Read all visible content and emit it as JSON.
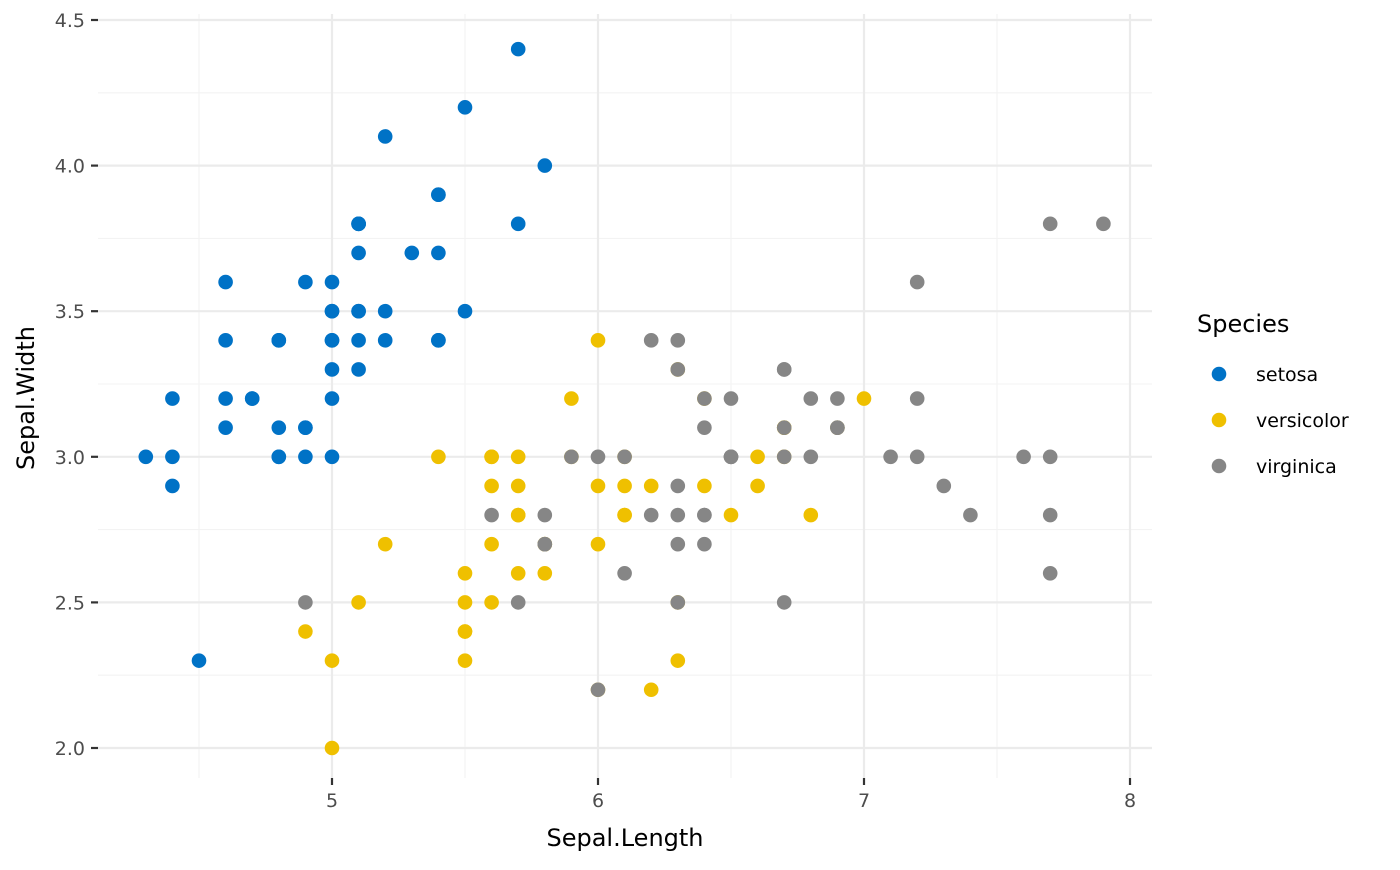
{
  "chart_data": {
    "type": "scatter",
    "title": "",
    "xlabel": "Sepal.Length",
    "ylabel": "Sepal.Width",
    "xlim": [
      4.2,
      8.1
    ],
    "ylim": [
      1.9,
      4.5
    ],
    "x_ticks": [
      5,
      6,
      7,
      8
    ],
    "x_tick_labels": [
      "5",
      "6",
      "7",
      "8"
    ],
    "y_ticks": [
      2.0,
      2.5,
      3.0,
      3.5,
      4.0,
      4.5
    ],
    "y_tick_labels": [
      "2.0",
      "2.5",
      "3.0",
      "3.5",
      "4.0",
      "4.5"
    ],
    "grid": true,
    "legend": {
      "title": "Species",
      "placement": "right"
    },
    "series": [
      {
        "name": "setosa",
        "color": "#0072C6",
        "points": [
          [
            5.1,
            3.5
          ],
          [
            4.9,
            3.0
          ],
          [
            4.7,
            3.2
          ],
          [
            4.6,
            3.1
          ],
          [
            5.0,
            3.6
          ],
          [
            5.4,
            3.9
          ],
          [
            4.6,
            3.4
          ],
          [
            5.0,
            3.4
          ],
          [
            4.4,
            2.9
          ],
          [
            4.9,
            3.1
          ],
          [
            5.4,
            3.7
          ],
          [
            4.8,
            3.4
          ],
          [
            4.8,
            3.0
          ],
          [
            4.3,
            3.0
          ],
          [
            5.8,
            4.0
          ],
          [
            5.7,
            4.4
          ],
          [
            5.4,
            3.9
          ],
          [
            5.1,
            3.5
          ],
          [
            5.7,
            3.8
          ],
          [
            5.1,
            3.8
          ],
          [
            5.4,
            3.4
          ],
          [
            5.1,
            3.7
          ],
          [
            4.6,
            3.6
          ],
          [
            5.1,
            3.3
          ],
          [
            4.8,
            3.4
          ],
          [
            5.0,
            3.0
          ],
          [
            5.0,
            3.4
          ],
          [
            5.2,
            3.5
          ],
          [
            5.2,
            3.4
          ],
          [
            4.7,
            3.2
          ],
          [
            4.8,
            3.1
          ],
          [
            5.4,
            3.4
          ],
          [
            5.2,
            4.1
          ],
          [
            5.5,
            4.2
          ],
          [
            4.9,
            3.1
          ],
          [
            5.0,
            3.2
          ],
          [
            5.5,
            3.5
          ],
          [
            4.9,
            3.6
          ],
          [
            4.4,
            3.0
          ],
          [
            5.1,
            3.4
          ],
          [
            5.0,
            3.5
          ],
          [
            4.5,
            2.3
          ],
          [
            4.4,
            3.2
          ],
          [
            5.0,
            3.5
          ],
          [
            5.1,
            3.8
          ],
          [
            4.8,
            3.0
          ],
          [
            5.1,
            3.8
          ],
          [
            4.6,
            3.2
          ],
          [
            5.3,
            3.7
          ],
          [
            5.0,
            3.3
          ]
        ]
      },
      {
        "name": "versicolor",
        "color": "#EFC000",
        "points": [
          [
            7.0,
            3.2
          ],
          [
            6.4,
            3.2
          ],
          [
            6.9,
            3.1
          ],
          [
            5.5,
            2.3
          ],
          [
            6.5,
            2.8
          ],
          [
            5.7,
            2.8
          ],
          [
            6.3,
            3.3
          ],
          [
            4.9,
            2.4
          ],
          [
            6.6,
            2.9
          ],
          [
            5.2,
            2.7
          ],
          [
            5.0,
            2.0
          ],
          [
            5.9,
            3.0
          ],
          [
            6.0,
            2.2
          ],
          [
            6.1,
            2.9
          ],
          [
            5.6,
            2.9
          ],
          [
            6.7,
            3.1
          ],
          [
            5.6,
            3.0
          ],
          [
            5.8,
            2.7
          ],
          [
            6.2,
            2.2
          ],
          [
            5.6,
            2.5
          ],
          [
            5.9,
            3.2
          ],
          [
            6.1,
            2.8
          ],
          [
            6.3,
            2.5
          ],
          [
            6.1,
            2.8
          ],
          [
            6.4,
            2.9
          ],
          [
            6.6,
            3.0
          ],
          [
            6.8,
            2.8
          ],
          [
            6.7,
            3.0
          ],
          [
            6.0,
            2.9
          ],
          [
            5.7,
            2.6
          ],
          [
            5.5,
            2.4
          ],
          [
            5.5,
            2.4
          ],
          [
            5.8,
            2.7
          ],
          [
            6.0,
            2.7
          ],
          [
            5.4,
            3.0
          ],
          [
            6.0,
            3.4
          ],
          [
            6.7,
            3.1
          ],
          [
            6.3,
            2.3
          ],
          [
            5.6,
            3.0
          ],
          [
            5.5,
            2.5
          ],
          [
            5.5,
            2.6
          ],
          [
            6.1,
            3.0
          ],
          [
            5.8,
            2.6
          ],
          [
            5.0,
            2.3
          ],
          [
            5.6,
            2.7
          ],
          [
            5.7,
            3.0
          ],
          [
            5.7,
            2.9
          ],
          [
            6.2,
            2.9
          ],
          [
            5.1,
            2.5
          ],
          [
            5.7,
            2.8
          ]
        ]
      },
      {
        "name": "virginica",
        "color": "#868686",
        "points": [
          [
            6.3,
            3.3
          ],
          [
            5.8,
            2.7
          ],
          [
            7.1,
            3.0
          ],
          [
            6.3,
            2.9
          ],
          [
            6.5,
            3.0
          ],
          [
            7.6,
            3.0
          ],
          [
            4.9,
            2.5
          ],
          [
            7.3,
            2.9
          ],
          [
            6.7,
            2.5
          ],
          [
            7.2,
            3.6
          ],
          [
            6.5,
            3.2
          ],
          [
            6.4,
            2.7
          ],
          [
            6.8,
            3.0
          ],
          [
            5.7,
            2.5
          ],
          [
            5.8,
            2.8
          ],
          [
            6.4,
            3.2
          ],
          [
            6.5,
            3.0
          ],
          [
            7.7,
            3.8
          ],
          [
            7.7,
            2.6
          ],
          [
            6.0,
            2.2
          ],
          [
            6.9,
            3.2
          ],
          [
            5.6,
            2.8
          ],
          [
            7.7,
            2.8
          ],
          [
            6.3,
            2.7
          ],
          [
            6.7,
            3.3
          ],
          [
            7.2,
            3.2
          ],
          [
            6.2,
            2.8
          ],
          [
            6.1,
            3.0
          ],
          [
            6.4,
            2.8
          ],
          [
            7.2,
            3.0
          ],
          [
            7.4,
            2.8
          ],
          [
            7.9,
            3.8
          ],
          [
            6.4,
            2.8
          ],
          [
            6.3,
            2.8
          ],
          [
            6.1,
            2.6
          ],
          [
            7.7,
            3.0
          ],
          [
            6.3,
            3.4
          ],
          [
            6.4,
            3.1
          ],
          [
            6.0,
            3.0
          ],
          [
            6.9,
            3.1
          ],
          [
            6.7,
            3.1
          ],
          [
            6.9,
            3.1
          ],
          [
            5.8,
            2.7
          ],
          [
            6.8,
            3.2
          ],
          [
            6.7,
            3.3
          ],
          [
            6.7,
            3.0
          ],
          [
            6.3,
            2.5
          ],
          [
            6.5,
            3.0
          ],
          [
            6.2,
            3.4
          ],
          [
            5.9,
            3.0
          ]
        ]
      }
    ]
  }
}
